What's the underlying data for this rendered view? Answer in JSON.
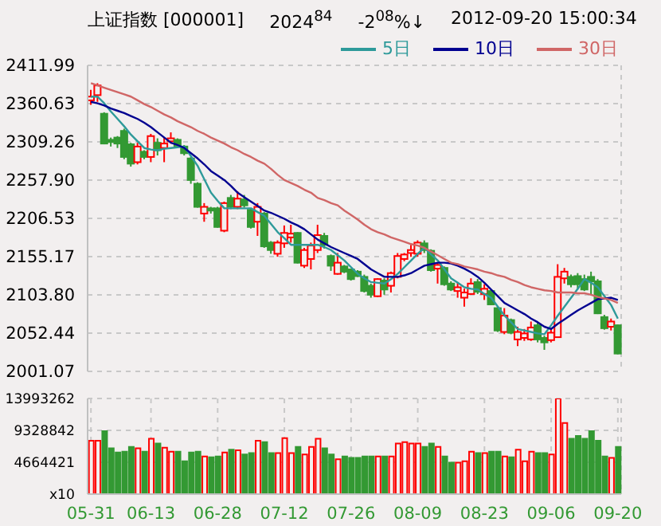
{
  "chart_data": [
    {
      "type": "candlestick",
      "title": "上证指数 [000001]",
      "annotations": [
        "2024$^{84}$",
        "-2$^{08}$%↓",
        "2012-09-20 15:00:34"
      ],
      "ohlc": [
        [
          2365,
          2379,
          2359,
          2370
        ],
        [
          2372,
          2388,
          2363,
          2385
        ],
        [
          2347,
          2349,
          2306,
          2307
        ],
        [
          2312,
          2315,
          2303,
          2309
        ],
        [
          2315,
          2317,
          2301,
          2307
        ],
        [
          2324,
          2327,
          2286,
          2289
        ],
        [
          2306,
          2308,
          2276,
          2280
        ],
        [
          2282,
          2308,
          2279,
          2303
        ],
        [
          2296,
          2298,
          2286,
          2289
        ],
        [
          2289,
          2320,
          2282,
          2317
        ],
        [
          2308,
          2314,
          2291,
          2298
        ],
        [
          2301,
          2315,
          2282,
          2307
        ],
        [
          2310,
          2322,
          2307,
          2314
        ],
        [
          2312,
          2314,
          2301,
          2304
        ],
        [
          2303,
          2305,
          2291,
          2294
        ],
        [
          2287,
          2289,
          2253,
          2258
        ],
        [
          2253,
          2255,
          2221,
          2222
        ],
        [
          2213,
          2227,
          2202,
          2222
        ],
        [
          2220,
          2222,
          2213,
          2217
        ],
        [
          2220,
          2222,
          2194,
          2195
        ],
        [
          2190,
          2229,
          2188,
          2227
        ],
        [
          2234,
          2238,
          2219,
          2222
        ],
        [
          2222,
          2243,
          2219,
          2233
        ],
        [
          2232,
          2238,
          2221,
          2224
        ],
        [
          2218,
          2220,
          2193,
          2195
        ],
        [
          2202,
          2227,
          2183,
          2222
        ],
        [
          2213,
          2215,
          2167,
          2169
        ],
        [
          2174,
          2176,
          2159,
          2164
        ],
        [
          2159,
          2177,
          2155,
          2174
        ],
        [
          2173,
          2197,
          2167,
          2187
        ],
        [
          2181,
          2198,
          2174,
          2186
        ],
        [
          2187,
          2188,
          2146,
          2147
        ],
        [
          2143,
          2167,
          2140,
          2164
        ],
        [
          2152,
          2174,
          2138,
          2170
        ],
        [
          2164,
          2198,
          2160,
          2184
        ],
        [
          2183,
          2187,
          2166,
          2171
        ],
        [
          2156,
          2158,
          2136,
          2143
        ],
        [
          2132,
          2160,
          2131,
          2147
        ],
        [
          2142,
          2144,
          2133,
          2135
        ],
        [
          2138,
          2139,
          2123,
          2125
        ],
        [
          2135,
          2137,
          2128,
          2129
        ],
        [
          2128,
          2131,
          2107,
          2109
        ],
        [
          2116,
          2119,
          2100,
          2104
        ],
        [
          2102,
          2126,
          2101,
          2125
        ],
        [
          2123,
          2126,
          2104,
          2111
        ],
        [
          2116,
          2135,
          2107,
          2133
        ],
        [
          2128,
          2160,
          2126,
          2156
        ],
        [
          2152,
          2160,
          2149,
          2158
        ],
        [
          2160,
          2171,
          2155,
          2164
        ],
        [
          2159,
          2177,
          2155,
          2174
        ],
        [
          2173,
          2177,
          2160,
          2164
        ],
        [
          2163,
          2165,
          2135,
          2137
        ],
        [
          2139,
          2147,
          2119,
          2144
        ],
        [
          2140,
          2142,
          2116,
          2118
        ],
        [
          2119,
          2122,
          2109,
          2111
        ],
        [
          2109,
          2121,
          2100,
          2114
        ],
        [
          2100,
          2112,
          2088,
          2107
        ],
        [
          2105,
          2126,
          2104,
          2119
        ],
        [
          2121,
          2125,
          2105,
          2108
        ],
        [
          2105,
          2118,
          2097,
          2112
        ],
        [
          2109,
          2111,
          2090,
          2091
        ],
        [
          2086,
          2088,
          2054,
          2056
        ],
        [
          2054,
          2086,
          2051,
          2076
        ],
        [
          2070,
          2072,
          2051,
          2053
        ],
        [
          2044,
          2061,
          2035,
          2054
        ],
        [
          2046,
          2058,
          2042,
          2052
        ],
        [
          2044,
          2068,
          2042,
          2060
        ],
        [
          2063,
          2067,
          2040,
          2044
        ],
        [
          2046,
          2049,
          2030,
          2040
        ],
        [
          2043,
          2058,
          2040,
          2053
        ],
        [
          2047,
          2145,
          2046,
          2128
        ],
        [
          2126,
          2140,
          2119,
          2135
        ],
        [
          2128,
          2131,
          2114,
          2118
        ],
        [
          2129,
          2133,
          2111,
          2118
        ],
        [
          2125,
          2131,
          2109,
          2111
        ],
        [
          2128,
          2135,
          2104,
          2122
        ],
        [
          2122,
          2125,
          2078,
          2079
        ],
        [
          2074,
          2077,
          2057,
          2059
        ],
        [
          2061,
          2072,
          2056,
          2068
        ],
        [
          2063,
          2064,
          2024,
          2025
        ]
      ],
      "colors": [
        "#ff0000",
        "#ff0000",
        "#339933",
        "#339933",
        "#339933",
        "#339933",
        "#339933",
        "#ff0000",
        "#339933",
        "#ff0000",
        "#339933",
        "#ff0000",
        "#ff0000",
        "#339933",
        "#339933",
        "#339933",
        "#339933",
        "#ff0000",
        "#339933",
        "#339933",
        "#ff0000",
        "#339933",
        "#ff0000",
        "#339933",
        "#339933",
        "#ff0000",
        "#339933",
        "#339933",
        "#ff0000",
        "#ff0000",
        "#ff0000",
        "#339933",
        "#ff0000",
        "#ff0000",
        "#ff0000",
        "#339933",
        "#339933",
        "#ff0000",
        "#339933",
        "#339933",
        "#339933",
        "#339933",
        "#339933",
        "#ff0000",
        "#339933",
        "#ff0000",
        "#ff0000",
        "#ff0000",
        "#ff0000",
        "#ff0000",
        "#339933",
        "#339933",
        "#ff0000",
        "#339933",
        "#339933",
        "#ff0000",
        "#ff0000",
        "#ff0000",
        "#339933",
        "#ff0000",
        "#339933",
        "#339933",
        "#ff0000",
        "#339933",
        "#ff0000",
        "#ff0000",
        "#ff0000",
        "#339933",
        "#339933",
        "#ff0000",
        "#ff0000",
        "#ff0000",
        "#339933",
        "#339933",
        "#339933",
        "#339933",
        "#339933",
        "#339933",
        "#ff0000",
        "#339933"
      ],
      "series": [
        {
          "type": "line",
          "name": "5日",
          "color": "#2e9a9a",
          "values": [
            2370,
            2370,
            2361,
            2350,
            2340,
            2330,
            2319,
            2310,
            2301,
            2299,
            2298,
            2300,
            2301,
            2302,
            2303,
            2290,
            2277,
            2259,
            2241,
            2230,
            2220,
            2220,
            2220,
            2220,
            2220,
            2215,
            2210,
            2199,
            2188,
            2180,
            2171,
            2171,
            2171,
            2171,
            2171,
            2168,
            2164,
            2157,
            2150,
            2141,
            2132,
            2126,
            2121,
            2120,
            2119,
            2125,
            2132,
            2141,
            2150,
            2159,
            2167,
            2158,
            2150,
            2138,
            2126,
            2120,
            2114,
            2112,
            2111,
            2105,
            2100,
            2088,
            2076,
            2067,
            2058,
            2056,
            2054,
            2052,
            2051,
            2063,
            2076,
            2088,
            2100,
            2112,
            2125,
            2120,
            2114,
            2102,
            2090,
            2072
          ]
        },
        {
          "type": "line",
          "name": "10日",
          "color": "#000090",
          "values": [
            2363,
            2361,
            2358,
            2354,
            2351,
            2348,
            2344,
            2340,
            2335,
            2329,
            2322,
            2315,
            2308,
            2305,
            2301,
            2294,
            2287,
            2279,
            2270,
            2264,
            2258,
            2250,
            2241,
            2235,
            2229,
            2223,
            2217,
            2214,
            2210,
            2206,
            2201,
            2197,
            2192,
            2185,
            2178,
            2173,
            2168,
            2164,
            2160,
            2156,
            2152,
            2145,
            2138,
            2133,
            2128,
            2128,
            2128,
            2130,
            2133,
            2138,
            2143,
            2145,
            2147,
            2147,
            2146,
            2143,
            2139,
            2134,
            2128,
            2120,
            2111,
            2102,
            2093,
            2088,
            2083,
            2078,
            2072,
            2067,
            2061,
            2058,
            2065,
            2071,
            2077,
            2083,
            2088,
            2093,
            2098,
            2099,
            2100,
            2097
          ]
        },
        {
          "type": "line",
          "name": "30日",
          "color": "#d06666",
          "values": [
            2388,
            2385,
            2382,
            2379,
            2376,
            2373,
            2370,
            2365,
            2360,
            2356,
            2351,
            2346,
            2342,
            2337,
            2333,
            2329,
            2324,
            2320,
            2315,
            2311,
            2307,
            2302,
            2298,
            2293,
            2289,
            2284,
            2280,
            2273,
            2265,
            2258,
            2254,
            2250,
            2245,
            2241,
            2234,
            2231,
            2227,
            2224,
            2217,
            2211,
            2205,
            2198,
            2192,
            2188,
            2185,
            2181,
            2178,
            2175,
            2172,
            2170,
            2167,
            2162,
            2157,
            2152,
            2147,
            2145,
            2142,
            2140,
            2138,
            2135,
            2133,
            2130,
            2128,
            2124,
            2121,
            2117,
            2114,
            2112,
            2110,
            2109,
            2107,
            2107,
            2107,
            2106,
            2106,
            2104,
            2101,
            2099,
            2097,
            2093
          ]
        }
      ],
      "ylim": [
        2001.07,
        2411.99
      ],
      "yticks": [
        {
          "value": 2001.07,
          "label": "2001.07"
        },
        2052.44,
        {
          "value": 2103.8,
          "label": "2103.80"
        },
        2155.17,
        2206.53,
        {
          "value": 2257.9,
          "label": "2257.90"
        },
        2309.26,
        2360.63,
        2411.99
      ],
      "grid": true,
      "legend": "top right",
      "tick_labels": "y"
    },
    {
      "type": "bar",
      "categories": [
        "05-31",
        null,
        null,
        null,
        null,
        null,
        null,
        null,
        null,
        "06-13",
        null,
        null,
        null,
        null,
        null,
        null,
        null,
        null,
        null,
        "06-28",
        null,
        null,
        null,
        null,
        null,
        null,
        null,
        null,
        null,
        "07-12",
        null,
        null,
        null,
        null,
        null,
        null,
        null,
        null,
        null,
        "07-26",
        null,
        null,
        null,
        null,
        null,
        null,
        null,
        null,
        null,
        "08-09",
        null,
        null,
        null,
        null,
        null,
        null,
        null,
        null,
        null,
        "08-23",
        null,
        null,
        null,
        null,
        null,
        null,
        null,
        null,
        null,
        "09-06",
        null,
        null,
        null,
        null,
        null,
        null,
        null,
        null,
        null,
        "09-20"
      ],
      "values": [
        7800000,
        7800000,
        9200000,
        6700000,
        6100000,
        6200000,
        6900000,
        6700000,
        6200000,
        8100000,
        7400000,
        6800000,
        6200000,
        6200000,
        4800000,
        6100000,
        6200000,
        5500000,
        5400000,
        5500000,
        6100000,
        6500000,
        6400000,
        5800000,
        6000000,
        7800000,
        7600000,
        6000000,
        6000000,
        8200000,
        6000000,
        6900000,
        5800000,
        6900000,
        8100000,
        6700000,
        5800000,
        5100000,
        5500000,
        5300000,
        5300000,
        5500000,
        5500000,
        5500000,
        5500000,
        5500000,
        7400000,
        7600000,
        7400000,
        7400000,
        6900000,
        7400000,
        6900000,
        5500000,
        4600000,
        4600000,
        4800000,
        6200000,
        6000000,
        6000000,
        6200000,
        6200000,
        5500000,
        5400000,
        6500000,
        4800000,
        6200000,
        6000000,
        6000000,
        5800000,
        13990000,
        10400000,
        8100000,
        8500000,
        8100000,
        9200000,
        7800000,
        5500000,
        5300000,
        6900000
      ],
      "colors": [
        "#ff0000",
        "#ff0000",
        "#339933",
        "#339933",
        "#339933",
        "#339933",
        "#339933",
        "#ff0000",
        "#339933",
        "#ff0000",
        "#339933",
        "#ff0000",
        "#ff0000",
        "#339933",
        "#339933",
        "#339933",
        "#339933",
        "#ff0000",
        "#339933",
        "#339933",
        "#ff0000",
        "#339933",
        "#ff0000",
        "#339933",
        "#339933",
        "#ff0000",
        "#339933",
        "#339933",
        "#ff0000",
        "#ff0000",
        "#ff0000",
        "#339933",
        "#ff0000",
        "#ff0000",
        "#ff0000",
        "#339933",
        "#339933",
        "#ff0000",
        "#339933",
        "#339933",
        "#339933",
        "#339933",
        "#339933",
        "#ff0000",
        "#339933",
        "#ff0000",
        "#ff0000",
        "#ff0000",
        "#ff0000",
        "#ff0000",
        "#339933",
        "#339933",
        "#ff0000",
        "#339933",
        "#339933",
        "#ff0000",
        "#ff0000",
        "#ff0000",
        "#339933",
        "#ff0000",
        "#339933",
        "#339933",
        "#ff0000",
        "#339933",
        "#ff0000",
        "#ff0000",
        "#ff0000",
        "#339933",
        "#339933",
        "#ff0000",
        "#ff0000",
        "#ff0000",
        "#339933",
        "#339933",
        "#339933",
        "#339933",
        "#339933",
        "#339933",
        "#ff0000",
        "#339933"
      ],
      "ylim": [
        0,
        13993262
      ],
      "yticks": [
        {
          "value": 0,
          "label": "x10"
        },
        4664421,
        9328842,
        13993262
      ],
      "grid": true
    }
  ]
}
